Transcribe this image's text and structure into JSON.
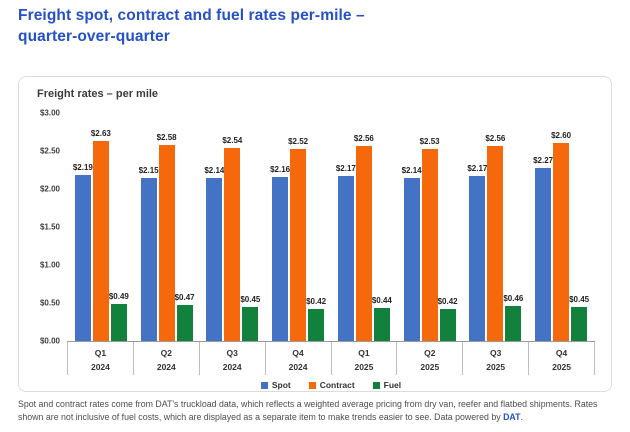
{
  "page": {
    "title_line1": "Freight spot, contract and fuel rates per-mile –",
    "title_line2": "quarter-over-quarter"
  },
  "chart_data": {
    "type": "bar",
    "title": "Freight rates – per mile",
    "categories": [
      {
        "quarter": "Q1",
        "year": "2024"
      },
      {
        "quarter": "Q2",
        "year": "2024"
      },
      {
        "quarter": "Q3",
        "year": "2024"
      },
      {
        "quarter": "Q4",
        "year": "2024"
      },
      {
        "quarter": "Q1",
        "year": "2025"
      },
      {
        "quarter": "Q2",
        "year": "2025"
      },
      {
        "quarter": "Q3",
        "year": "2025"
      },
      {
        "quarter": "Q4",
        "year": "2025"
      }
    ],
    "series": [
      {
        "name": "Spot",
        "color": "#4472C4",
        "values": [
          2.19,
          2.15,
          2.14,
          2.16,
          2.17,
          2.14,
          2.17,
          2.27
        ]
      },
      {
        "name": "Contract",
        "color": "#F6680C",
        "values": [
          2.63,
          2.58,
          2.54,
          2.52,
          2.56,
          2.53,
          2.56,
          2.6
        ]
      },
      {
        "name": "Fuel",
        "color": "#12813D",
        "values": [
          0.49,
          0.47,
          0.45,
          0.42,
          0.44,
          0.42,
          0.46,
          0.45
        ]
      }
    ],
    "ylim": [
      0,
      3
    ],
    "yticks": [
      3.0,
      2.5,
      2.0,
      1.5,
      1.0,
      0.5,
      0.0
    ],
    "value_prefix": "$",
    "legend_position": "bottom",
    "grid": false
  },
  "footer": {
    "text_before_link": "Spot and contract rates come from DAT's truckload data, which reflects a weighted average pricing from dry van, reefer and flatbed shipments. Rates shown are not inclusive of fuel costs, which are displayed as a separate item to make trends easier to see. Data powered by ",
    "link_text": "DAT",
    "text_after_link": "."
  },
  "colors": {
    "title_blue": "#2450C8",
    "link_blue": "#2450C8",
    "panel_border": "#DCDCDC",
    "spot_blue": "#4472C4",
    "contract_orange": "#F6680C",
    "fuel_green": "#12813D"
  }
}
